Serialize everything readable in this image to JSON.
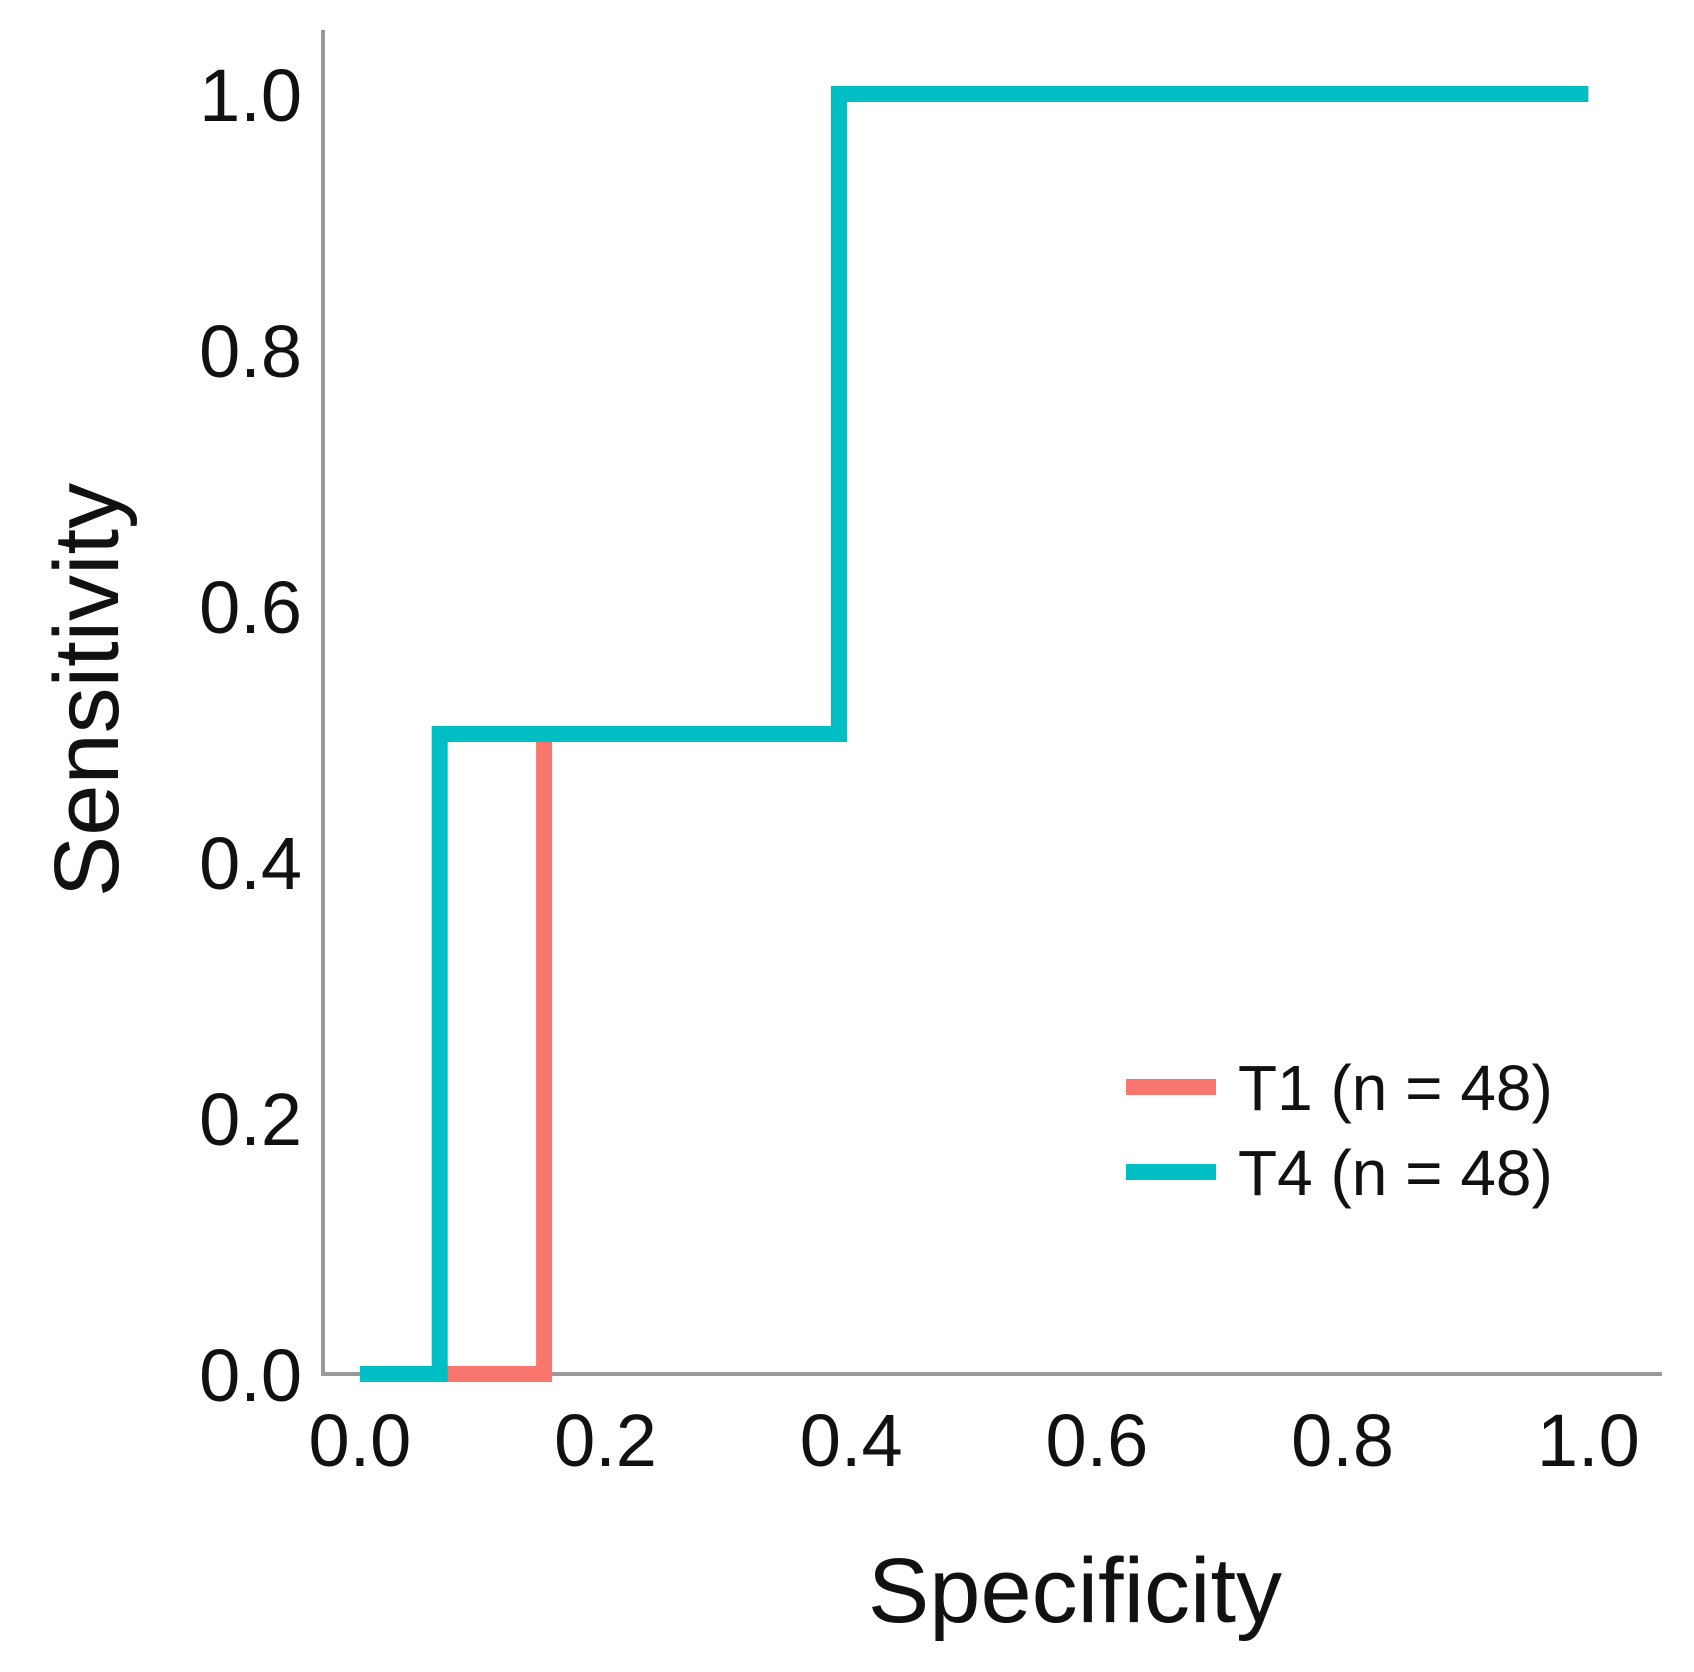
{
  "chart_data": {
    "type": "line",
    "title": "",
    "xlabel": "Specificity",
    "ylabel": "Sensitivity",
    "xlim": [
      -0.03,
      1.06
    ],
    "ylim": [
      0.0,
      1.05
    ],
    "xticks": [
      "0.0",
      "0.2",
      "0.4",
      "0.6",
      "0.8",
      "1.0"
    ],
    "yticks": [
      "0.0",
      "0.2",
      "0.4",
      "0.6",
      "0.8",
      "1.0"
    ],
    "grid": false,
    "legend_position": "lower-right",
    "series": [
      {
        "name": "T1 (n = 48)",
        "color": "#f8766d",
        "step": true,
        "x": [
          0.0,
          0.15,
          0.15,
          0.39,
          0.39,
          1.0
        ],
        "y": [
          0.0,
          0.0,
          0.5,
          0.5,
          1.0,
          1.0
        ]
      },
      {
        "name": "T4 (n = 48)",
        "color": "#00bfc4",
        "step": true,
        "x": [
          0.0,
          0.065,
          0.065,
          0.39,
          0.39,
          1.0
        ],
        "y": [
          0.0,
          0.0,
          0.5,
          0.5,
          1.0,
          1.0
        ]
      }
    ]
  }
}
